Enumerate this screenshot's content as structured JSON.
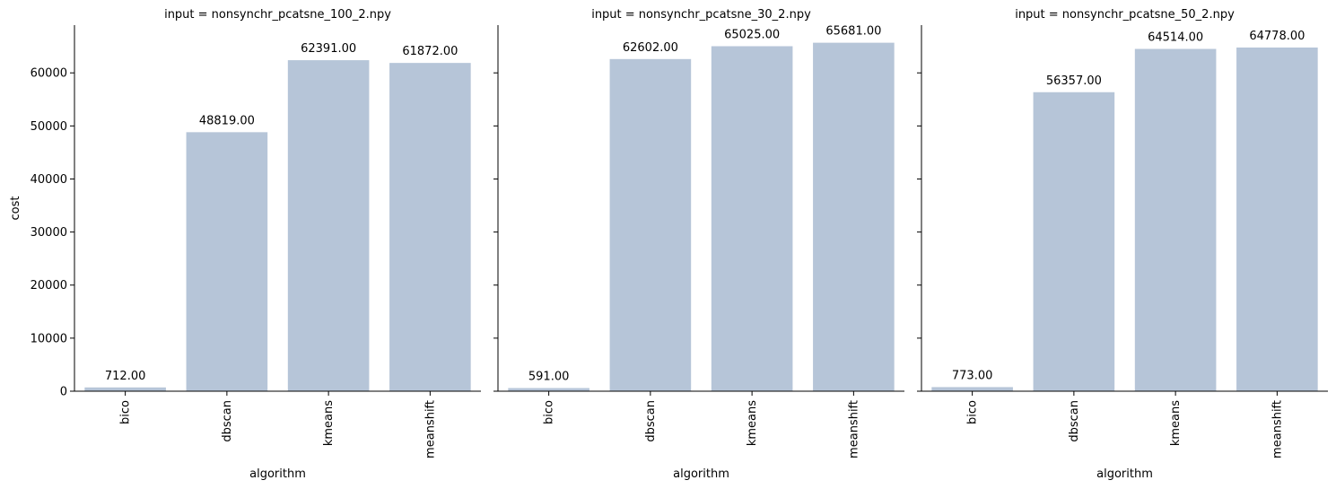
{
  "chart_data": [
    {
      "type": "bar",
      "title": "input = nonsynchr_pcatsne_100_2.npy",
      "xlabel": "algorithm",
      "ylabel": "cost",
      "categories": [
        "bico",
        "dbscan",
        "kmeans",
        "meanshift"
      ],
      "values": [
        712,
        48819,
        62391,
        61872
      ],
      "data_labels": [
        "712.00",
        "48819.00",
        "62391.00",
        "61872.00"
      ],
      "ylim": [
        0,
        69000
      ],
      "yticks": [
        0,
        10000,
        20000,
        30000,
        40000,
        50000,
        60000
      ],
      "color": "#b6c5d8",
      "grid": false
    },
    {
      "type": "bar",
      "title": "input = nonsynchr_pcatsne_30_2.npy",
      "xlabel": "algorithm",
      "ylabel": "",
      "categories": [
        "bico",
        "dbscan",
        "kmeans",
        "meanshift"
      ],
      "values": [
        591,
        62602,
        65025,
        65681
      ],
      "data_labels": [
        "591.00",
        "62602.00",
        "65025.00",
        "65681.00"
      ],
      "ylim": [
        0,
        69000
      ],
      "yticks": [
        0,
        10000,
        20000,
        30000,
        40000,
        50000,
        60000
      ],
      "color": "#b6c5d8",
      "grid": false
    },
    {
      "type": "bar",
      "title": "input = nonsynchr_pcatsne_50_2.npy",
      "xlabel": "algorithm",
      "ylabel": "",
      "categories": [
        "bico",
        "dbscan",
        "kmeans",
        "meanshift"
      ],
      "values": [
        773,
        56357,
        64514,
        64778
      ],
      "data_labels": [
        "773.00",
        "56357.00",
        "64514.00",
        "64778.00"
      ],
      "ylim": [
        0,
        69000
      ],
      "yticks": [
        0,
        10000,
        20000,
        30000,
        40000,
        50000,
        60000
      ],
      "color": "#b6c5d8",
      "grid": false
    }
  ]
}
